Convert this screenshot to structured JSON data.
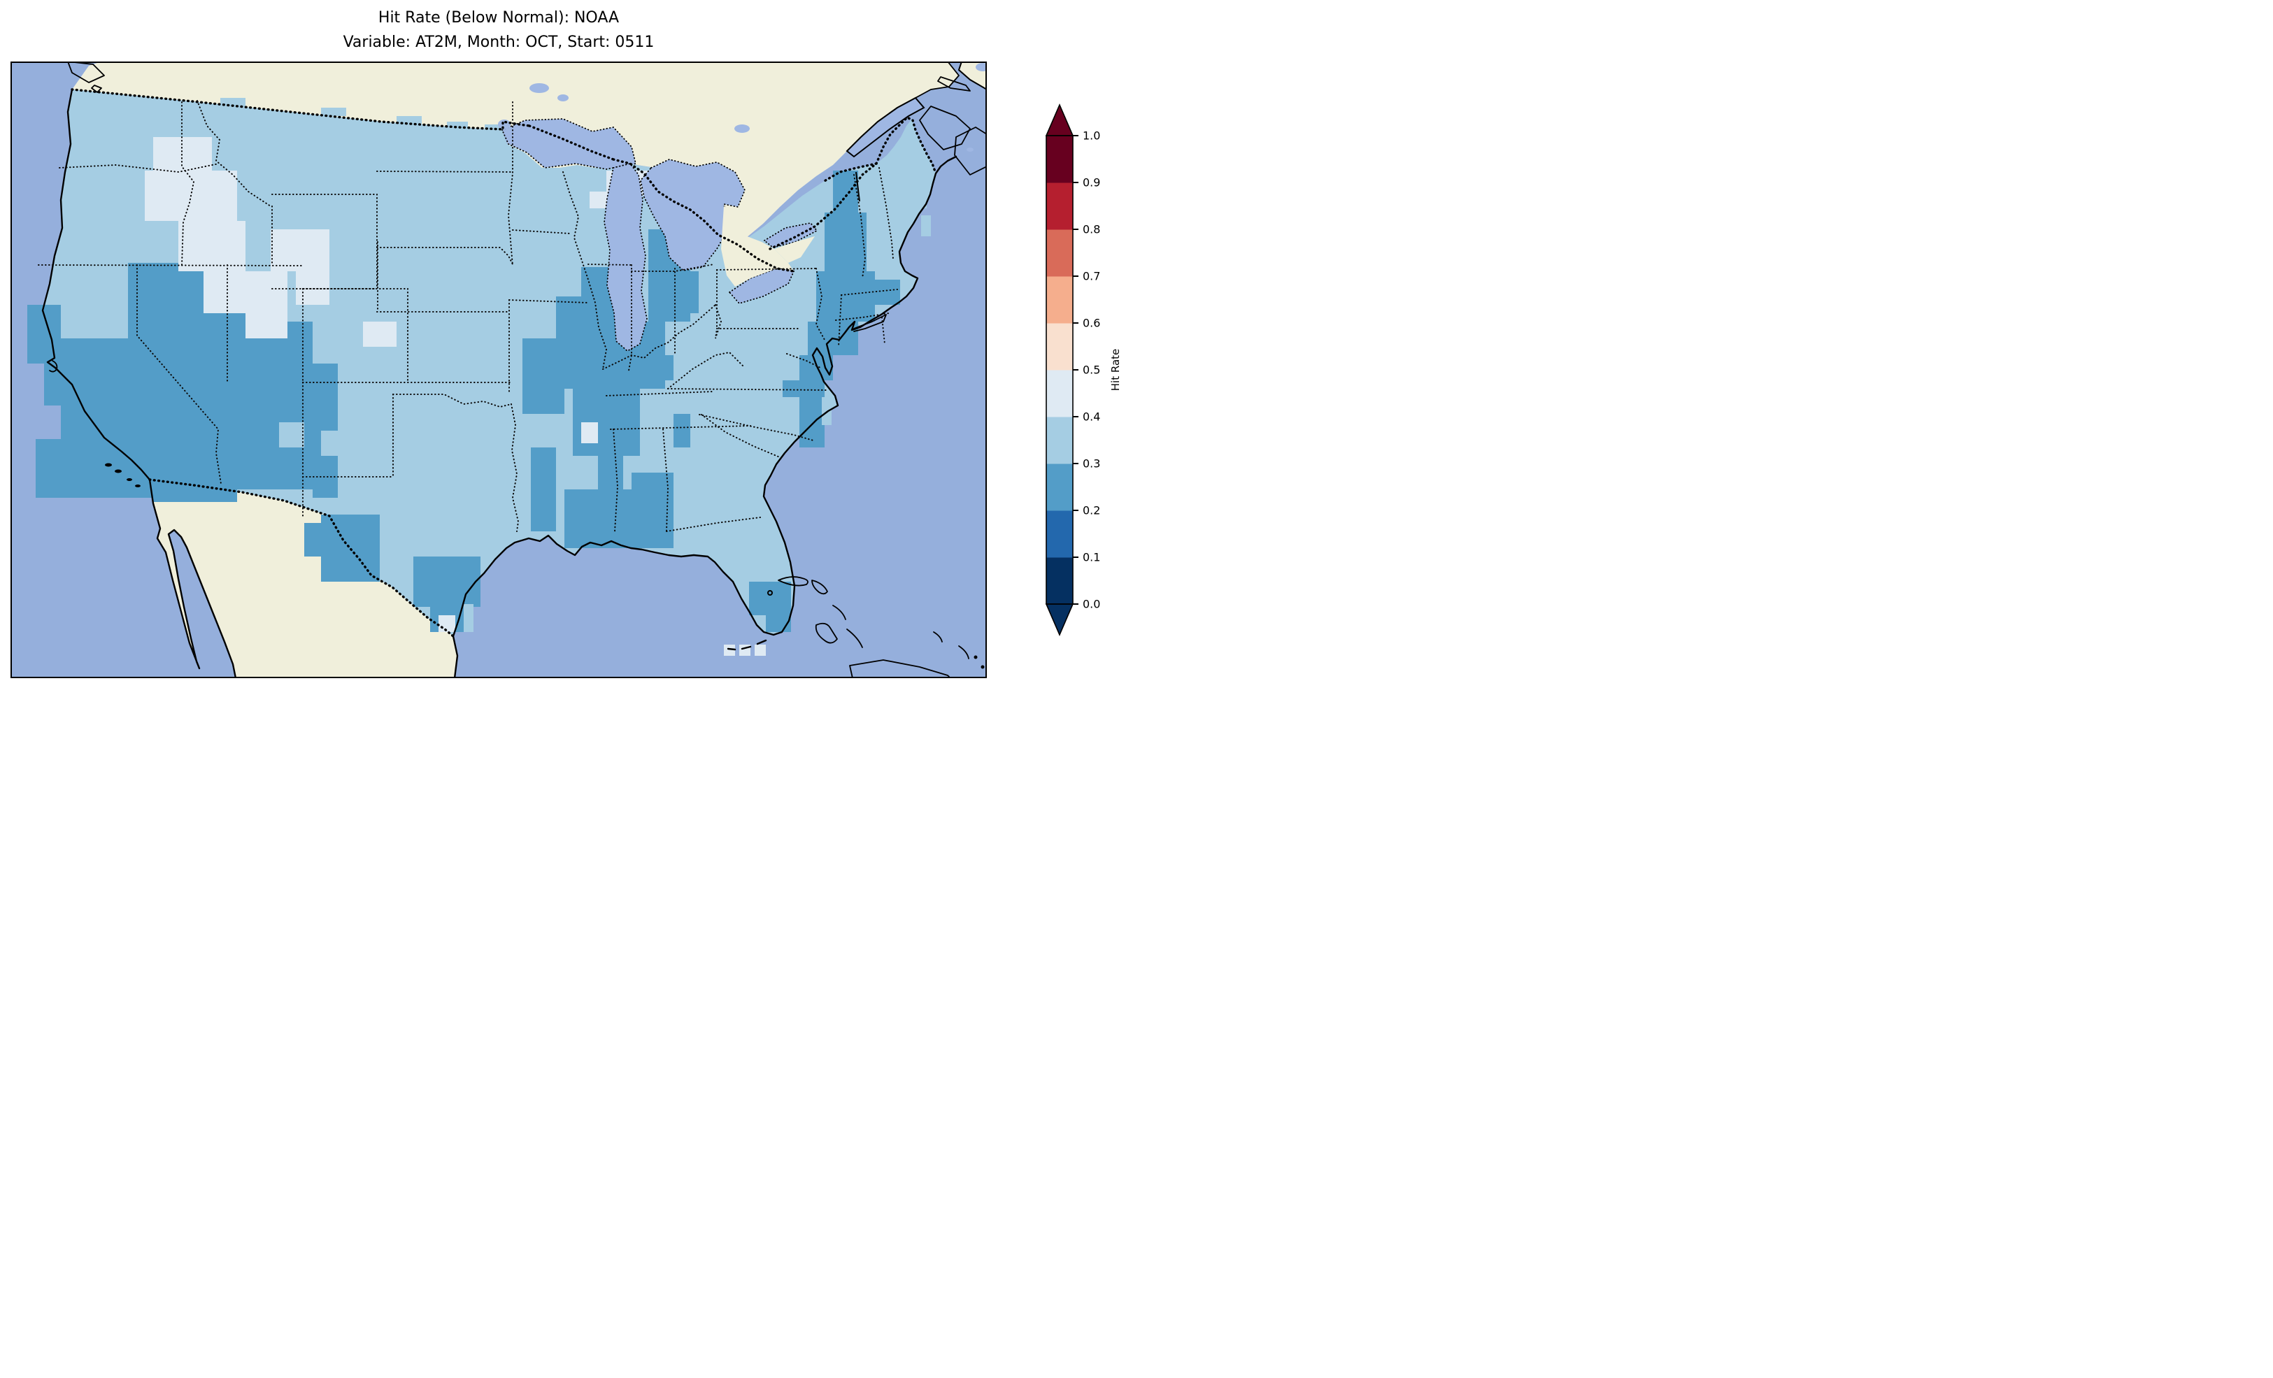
{
  "title": {
    "line1": "Hit Rate (Below Normal): NOAA",
    "line2": "Variable: AT2M, Month: OCT, Start: 0511"
  },
  "colorbar": {
    "label": "Hit Rate",
    "ticks": [
      "0.0",
      "0.1",
      "0.2",
      "0.3",
      "0.4",
      "0.5",
      "0.6",
      "0.7",
      "0.8",
      "0.9",
      "1.0"
    ],
    "bin_colors": [
      "#053061",
      "#2368ad",
      "#539dc8",
      "#a5cde3",
      "#dfeaf3",
      "#f9e0cf",
      "#f5ae8d",
      "#d96b59",
      "#b51f2f",
      "#67001f"
    ],
    "under_color": "#053061",
    "over_color": "#67001f",
    "extend": "both"
  },
  "map": {
    "colors": {
      "ocean": "#95afdc",
      "land": "#f0efdb",
      "lakes": "#9fb7e3",
      "coastline": "#000000",
      "frame": "#000000"
    },
    "field": {
      "bin2_rects": [
        [
          24,
          348,
          48,
          84
        ],
        [
          36,
          540,
          36,
          84
        ],
        [
          48,
          408,
          48,
          84
        ],
        [
          168,
          288,
          144,
          108
        ],
        [
          72,
          396,
          240,
          228
        ],
        [
          312,
          324,
          72,
          288
        ],
        [
          384,
          372,
          48,
          240
        ],
        [
          432,
          432,
          36,
          192
        ],
        [
          204,
          600,
          120,
          30
        ],
        [
          444,
          648,
          84,
          96
        ],
        [
          420,
          660,
          24,
          48
        ],
        [
          576,
          708,
          96,
          72
        ],
        [
          600,
          768,
          48,
          48
        ],
        [
          744,
          552,
          36,
          120
        ],
        [
          792,
          612,
          108,
          84
        ],
        [
          888,
          588,
          60,
          108
        ],
        [
          948,
          504,
          24,
          48
        ],
        [
          732,
          396,
          60,
          108
        ],
        [
          780,
          336,
          48,
          72
        ],
        [
          792,
          372,
          144,
          96
        ],
        [
          804,
          468,
          96,
          96
        ],
        [
          840,
          564,
          36,
          48
        ],
        [
          816,
          294,
          48,
          78
        ],
        [
          912,
          240,
          60,
          132
        ],
        [
          948,
          300,
          36,
          60
        ],
        [
          852,
          414,
          48,
          36
        ],
        [
          876,
          420,
          72,
          36
        ],
        [
          1128,
          444,
          36,
          108
        ],
        [
          1176,
          156,
          36,
          60
        ],
        [
          1164,
          216,
          60,
          84
        ],
        [
          1152,
          300,
          84,
          72
        ],
        [
          1140,
          372,
          72,
          48
        ],
        [
          1128,
          420,
          48,
          36
        ],
        [
          1104,
          456,
          36,
          24
        ],
        [
          1236,
          312,
          36,
          36
        ],
        [
          1056,
          744,
          60,
          48
        ],
        [
          1080,
          792,
          36,
          24
        ]
      ],
      "bin4_rects": [
        [
          204,
          108,
          84,
          48
        ],
        [
          192,
          156,
          132,
          72
        ],
        [
          240,
          228,
          96,
          72
        ],
        [
          276,
          300,
          120,
          60
        ],
        [
          336,
          360,
          60,
          36
        ],
        [
          372,
          240,
          84,
          60
        ],
        [
          408,
          300,
          48,
          48
        ],
        [
          504,
          372,
          48,
          36
        ],
        [
          852,
          156,
          72,
          36
        ],
        [
          828,
          186,
          36,
          24
        ],
        [
          816,
          516,
          24,
          30
        ],
        [
          612,
          792,
          24,
          24
        ],
        [
          1020,
          834,
          16,
          16
        ],
        [
          1042,
          834,
          16,
          16
        ],
        [
          1064,
          834,
          16,
          16
        ]
      ],
      "bin3_island_rects": [
        [
          384,
          516,
          36,
          36
        ],
        [
          444,
          528,
          48,
          36
        ]
      ],
      "bin3_spill_rects": [
        [
          300,
          52,
          36,
          14
        ],
        [
          444,
          66,
          36,
          12
        ],
        [
          552,
          78,
          36,
          12
        ],
        [
          624,
          86,
          30,
          12
        ],
        [
          678,
          90,
          26,
          10
        ],
        [
          732,
          96,
          30,
          12
        ],
        [
          1290,
          170,
          20,
          40
        ],
        [
          1302,
          220,
          14,
          30
        ],
        [
          648,
          776,
          14,
          40
        ],
        [
          1160,
          480,
          14,
          40
        ]
      ]
    }
  },
  "chart_data": {
    "type": "heatmap",
    "title": "Hit Rate (Below Normal): NOAA",
    "subtitle": "Variable: AT2M, Month: OCT, Start: 0511",
    "source": "NOAA",
    "metric": "Hit Rate (Below Normal)",
    "variable": "AT2M",
    "month": "OCT",
    "start": "0511",
    "map_region": "Continental United States (CONUS) with surrounding Canada, Mexico, Atlantic and Pacific",
    "colorbar": {
      "label": "Hit Rate",
      "range": [
        0.0,
        1.0
      ],
      "bin_width": 0.1,
      "extend": "both",
      "position": "right",
      "colormap": "RdBu_r (10 discrete bins)"
    },
    "value_summary": {
      "dominant_bin": "0.3-0.4",
      "bins_present_on_map": [
        "0.2-0.3",
        "0.3-0.4",
        "0.4-0.5"
      ],
      "regions_0.2_0.3": [
        "southern/central California",
        "Nevada",
        "Arizona",
        "Utah",
        "western New Mexico",
        "west Texas (Big Bend)",
        "south Texas",
        "east Texas / Louisiana",
        "southern Mississippi and Alabama (Mobile area)",
        "central Georgia strip",
        "Missouri / Arkansas / southern Illinois / western Kentucky",
        "eastern Wisconsin and lower Michigan around Lake Michigan",
        "Chesapeake Bay area",
        "New England (VT, NH, MA, CT, RI) and Long Island",
        "south Florida"
      ],
      "regions_0.4_0.5": [
        "central Idaho",
        "western Montana",
        "northwest Wyoming",
        "upper Michigan",
        "northeast Arizona patch",
        "central Colorado patch",
        "three offshore cells south of Florida"
      ],
      "regions_0.3_0.4": [
        "most of the remaining contiguous United States"
      ]
    }
  }
}
